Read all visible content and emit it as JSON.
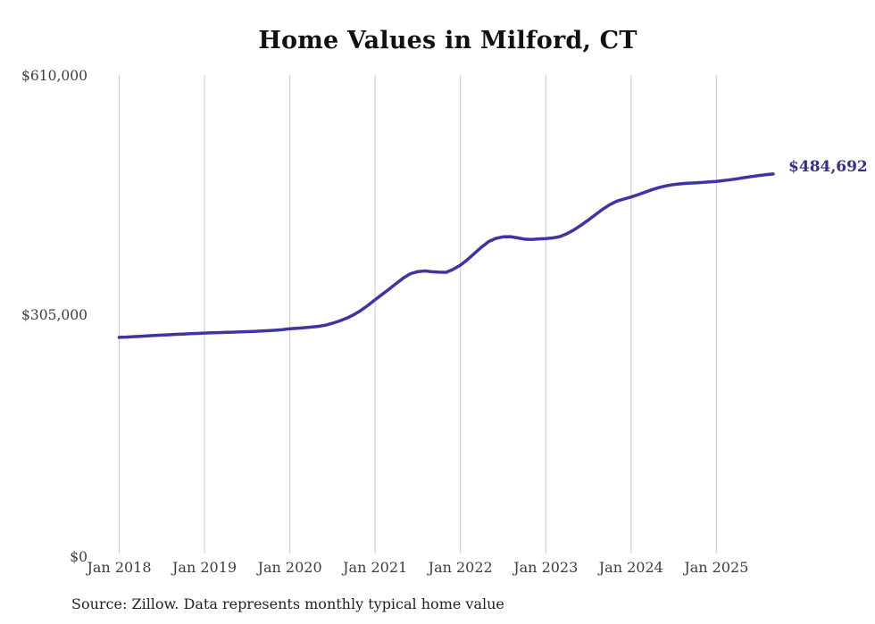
{
  "title": "Home Values in Milford, CT",
  "end_label": "$484,692",
  "source_note": "Source: Zillow. Data represents monthly typical home value",
  "colors": {
    "line": "#3c35a3",
    "end_label": "#33308f",
    "grid": "#c9c9c9",
    "axis_text": "#3d3d3d",
    "title_text": "#111111",
    "source_text": "#222222",
    "background": "#ffffff"
  },
  "chart_data": {
    "type": "line",
    "title": "Home Values in Milford, CT",
    "xlabel": "",
    "ylabel": "",
    "grid": "vertical-only",
    "legend": "none",
    "x_start": "2018-01",
    "x_end": "2025-09",
    "x_tick_labels": [
      "Jan 2018",
      "Jan 2019",
      "Jan 2020",
      "Jan 2021",
      "Jan 2022",
      "Jan 2023",
      "Jan 2024",
      "Jan 2025"
    ],
    "y_ticks": [
      0,
      305000,
      610000
    ],
    "y_tick_labels": [
      "$0",
      "$305,000",
      "$610,000"
    ],
    "ylim": [
      0,
      610000
    ],
    "annotation": "$484,692",
    "series": [
      {
        "name": "Typical home value (monthly)",
        "final_value": 484692,
        "values": [
          276000,
          276400,
          276900,
          277400,
          277900,
          278400,
          278900,
          279400,
          279900,
          280300,
          280700,
          281100,
          281500,
          281800,
          282100,
          282400,
          282700,
          283000,
          283300,
          283700,
          284100,
          284600,
          285200,
          286000,
          287000,
          287600,
          288300,
          289100,
          290100,
          291500,
          294000,
          297000,
          300500,
          305000,
          310500,
          317000,
          324000,
          331000,
          338000,
          345000,
          352000,
          357500,
          360000,
          360900,
          359800,
          359300,
          359200,
          363000,
          368300,
          375500,
          383500,
          391500,
          398500,
          402500,
          404400,
          404600,
          403200,
          401500,
          401000,
          401800,
          402300,
          403000,
          404800,
          408500,
          413500,
          419500,
          426000,
          432800,
          439500,
          445500,
          450000,
          452800,
          455300,
          458300,
          461500,
          464800,
          467600,
          469700,
          471200,
          472200,
          472800,
          473300,
          473900,
          474500,
          475200,
          476200,
          477400,
          478700,
          480100,
          481500,
          482800,
          483900,
          484692
        ]
      }
    ]
  }
}
